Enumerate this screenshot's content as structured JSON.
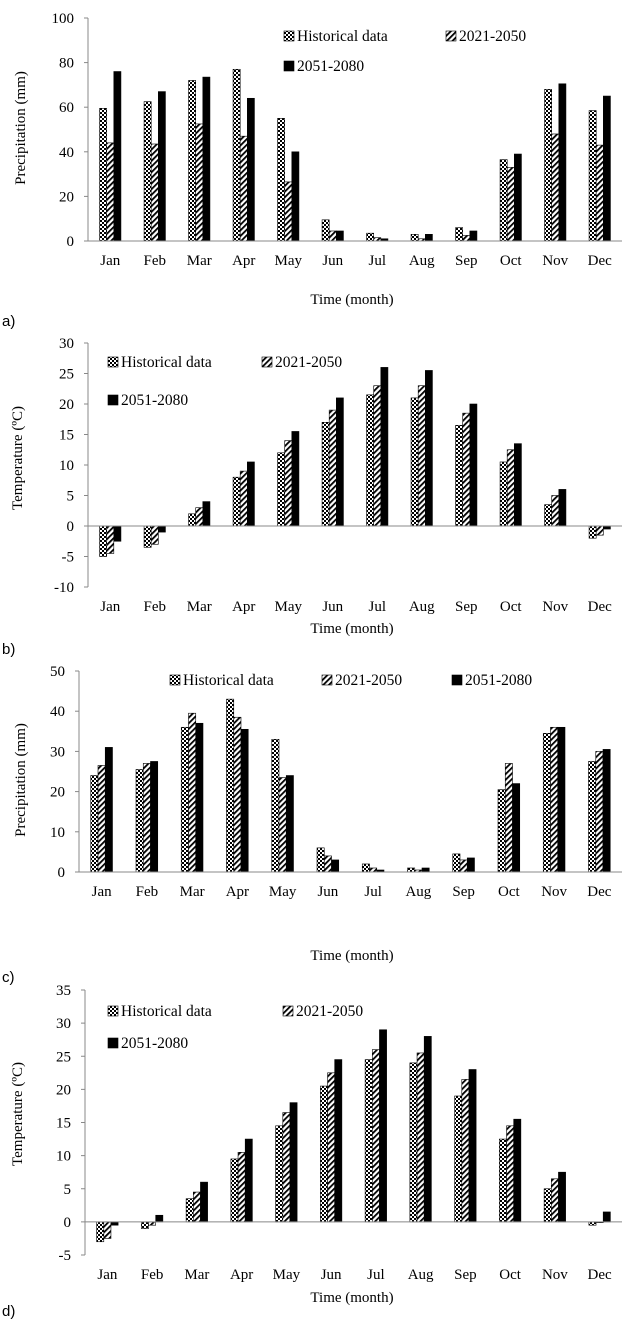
{
  "colors": {
    "black": "#000000",
    "axis": "#888888"
  },
  "legend": {
    "historical": "Historical data",
    "p2021": "2021-2050",
    "p2051": "2051-2080"
  },
  "panels": [
    {
      "label": "a)"
    },
    {
      "label": "b)"
    },
    {
      "label": "c)"
    },
    {
      "label": "d)"
    }
  ],
  "chart_data": [
    {
      "type": "bar",
      "categories": [
        "Jan",
        "Feb",
        "Mar",
        "Apr",
        "May",
        "Jun",
        "Jul",
        "Aug",
        "Sep",
        "Oct",
        "Nov",
        "Dec"
      ],
      "xlabel": "Time (month)",
      "ylabel": "Precipitation (mm)",
      "ylim": [
        0,
        100
      ],
      "yticks": [
        0,
        20,
        40,
        60,
        80,
        100
      ],
      "legend_position": "top-right",
      "series": [
        {
          "name": "Historical data",
          "values": [
            59.5,
            62.5,
            72,
            77,
            55,
            9.5,
            3.5,
            3,
            6,
            36.5,
            68,
            58.5
          ]
        },
        {
          "name": "2021-2050",
          "values": [
            44,
            43.5,
            52.5,
            47,
            26.5,
            4.5,
            1.5,
            1,
            2.5,
            33,
            48,
            43
          ]
        },
        {
          "name": "2051-2080",
          "values": [
            76,
            67,
            73.5,
            64,
            40,
            4.5,
            1,
            3,
            4.5,
            39,
            70.5,
            65
          ]
        }
      ]
    },
    {
      "type": "bar",
      "categories": [
        "Jan",
        "Feb",
        "Mar",
        "Apr",
        "May",
        "Jun",
        "Jul",
        "Aug",
        "Sep",
        "Oct",
        "Nov",
        "Dec"
      ],
      "xlabel": "Time (month)",
      "ylabel": "Temperature (ºC)",
      "ylim": [
        -10,
        30
      ],
      "yticks": [
        -10,
        -5,
        0,
        5,
        10,
        15,
        20,
        25,
        30
      ],
      "legend_position": "top-left",
      "series": [
        {
          "name": "Historical data",
          "values": [
            -5,
            -3.5,
            2,
            8,
            12,
            17,
            21.5,
            21,
            16.5,
            10.5,
            3.5,
            -2
          ]
        },
        {
          "name": "2021-2050",
          "values": [
            -4.5,
            -3,
            3,
            9,
            14,
            19,
            23,
            23,
            18.5,
            12.5,
            5,
            -1.5
          ]
        },
        {
          "name": "2051-2080",
          "values": [
            -2.5,
            -1,
            4,
            10.5,
            15.5,
            21,
            26,
            25.5,
            20,
            13.5,
            6,
            -0.5
          ]
        }
      ]
    },
    {
      "type": "bar",
      "categories": [
        "Jan",
        "Feb",
        "Mar",
        "Apr",
        "May",
        "Jun",
        "Jul",
        "Aug",
        "Sep",
        "Oct",
        "Nov",
        "Dec"
      ],
      "xlabel": "Time (month)",
      "ylabel": "Precipitation (mm)",
      "ylim": [
        0,
        50
      ],
      "yticks": [
        0,
        10,
        20,
        30,
        40,
        50
      ],
      "legend_position": "top-center",
      "series": [
        {
          "name": "Historical data",
          "values": [
            24,
            25.5,
            36,
            43,
            33,
            6,
            2,
            1,
            4.5,
            20.5,
            34.5,
            27.5
          ]
        },
        {
          "name": "2021-2050",
          "values": [
            26.5,
            27,
            39.5,
            38.5,
            23.5,
            4,
            1,
            0.5,
            3,
            27,
            36,
            30
          ]
        },
        {
          "name": "2051-2080",
          "values": [
            31,
            27.5,
            37,
            35.5,
            24,
            3,
            0.5,
            1,
            3.5,
            22,
            36,
            30.5
          ]
        }
      ]
    },
    {
      "type": "bar",
      "categories": [
        "Jan",
        "Feb",
        "Mar",
        "Apr",
        "May",
        "Jun",
        "Jul",
        "Aug",
        "Sep",
        "Oct",
        "Nov",
        "Dec"
      ],
      "xlabel": "Time (month)",
      "ylabel": "Temperature (ºC)",
      "ylim": [
        -5,
        35
      ],
      "yticks": [
        -5,
        0,
        5,
        10,
        15,
        20,
        25,
        30,
        35
      ],
      "legend_position": "top-left",
      "series": [
        {
          "name": "Historical data",
          "values": [
            -3,
            -1,
            3.5,
            9.5,
            14.5,
            20.5,
            24.5,
            24,
            19,
            12.5,
            5,
            -0.5
          ]
        },
        {
          "name": "2021-2050",
          "values": [
            -2.5,
            -0.5,
            4.5,
            10.5,
            16.5,
            22.5,
            26,
            25.5,
            21.5,
            14.5,
            6.5,
            0
          ]
        },
        {
          "name": "2051-2080",
          "values": [
            -0.5,
            1,
            6,
            12.5,
            18,
            24.5,
            29,
            28,
            23,
            15.5,
            7.5,
            1.5
          ]
        }
      ]
    }
  ]
}
